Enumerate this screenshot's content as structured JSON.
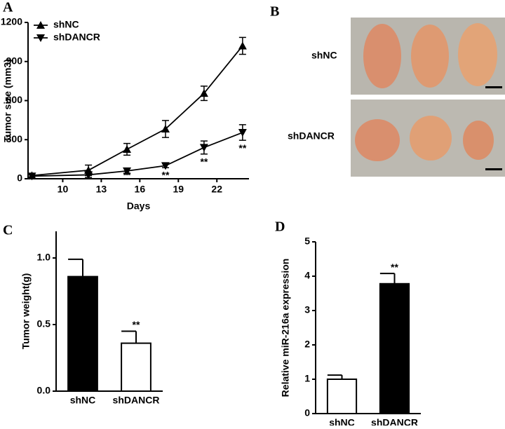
{
  "chart_data": [
    {
      "type": "line",
      "panel_label": "A",
      "xlabel": "Days",
      "ylabel": "Tumor size (mm3)",
      "x": [
        7.6,
        12,
        15,
        18,
        21,
        24
      ],
      "xlim": [
        7.3,
        24.5
      ],
      "xticks": [
        10,
        13,
        16,
        19,
        22
      ],
      "ylim": [
        0,
        1200
      ],
      "yticks": [
        0,
        300,
        600,
        900,
        1200
      ],
      "legend": "upper-left",
      "series": [
        {
          "name": "shNC",
          "color": "#000000",
          "marker": "triangle-up",
          "values": [
            25,
            65,
            226,
            382,
            656,
            1020
          ],
          "errors": [
            15,
            40,
            45,
            65,
            55,
            65
          ]
        },
        {
          "name": "shDANCR",
          "color": "#000000",
          "marker": "triangle-down",
          "values": [
            20,
            30,
            60,
            100,
            240,
            355
          ],
          "errors": [
            10,
            20,
            20,
            15,
            50,
            60
          ]
        }
      ],
      "annotations": [
        {
          "text": "**",
          "x": 12
        },
        {
          "text": "**",
          "x": 15
        },
        {
          "text": "**",
          "x": 18
        },
        {
          "text": "**",
          "x": 21
        },
        {
          "text": "**",
          "x": 24
        }
      ]
    },
    {
      "type": "bar",
      "panel_label": "C",
      "ylabel": "Tumor weight(g)",
      "categories": [
        "shNC",
        "shDANCR"
      ],
      "values": [
        0.86,
        0.36
      ],
      "errors": [
        0.13,
        0.09
      ],
      "colors": [
        "#000000",
        "#ffffff"
      ],
      "ylim": [
        0,
        1.2
      ],
      "yticks": [
        {
          "value": 0,
          "label": "0.0"
        },
        {
          "value": 0.5,
          "label": "0.5"
        },
        {
          "value": 1,
          "label": "1.0"
        }
      ],
      "annotations": [
        {
          "text": "**",
          "category": 1
        }
      ]
    },
    {
      "type": "bar",
      "panel_label": "D",
      "ylabel": "Relative miR-216a expression",
      "categories": [
        "shNC",
        "shDANCR"
      ],
      "values": [
        1.0,
        3.78
      ],
      "errors": [
        0.12,
        0.3
      ],
      "colors": [
        "#ffffff",
        "#000000"
      ],
      "ylim": [
        0,
        5
      ],
      "yticks": [
        0,
        1,
        2,
        3,
        4,
        5
      ],
      "annotations": [
        {
          "text": "**",
          "category": 1
        }
      ]
    }
  ],
  "photo_panel": {
    "panel_label": "B",
    "rows": [
      "shNC",
      "shDANCR"
    ]
  }
}
